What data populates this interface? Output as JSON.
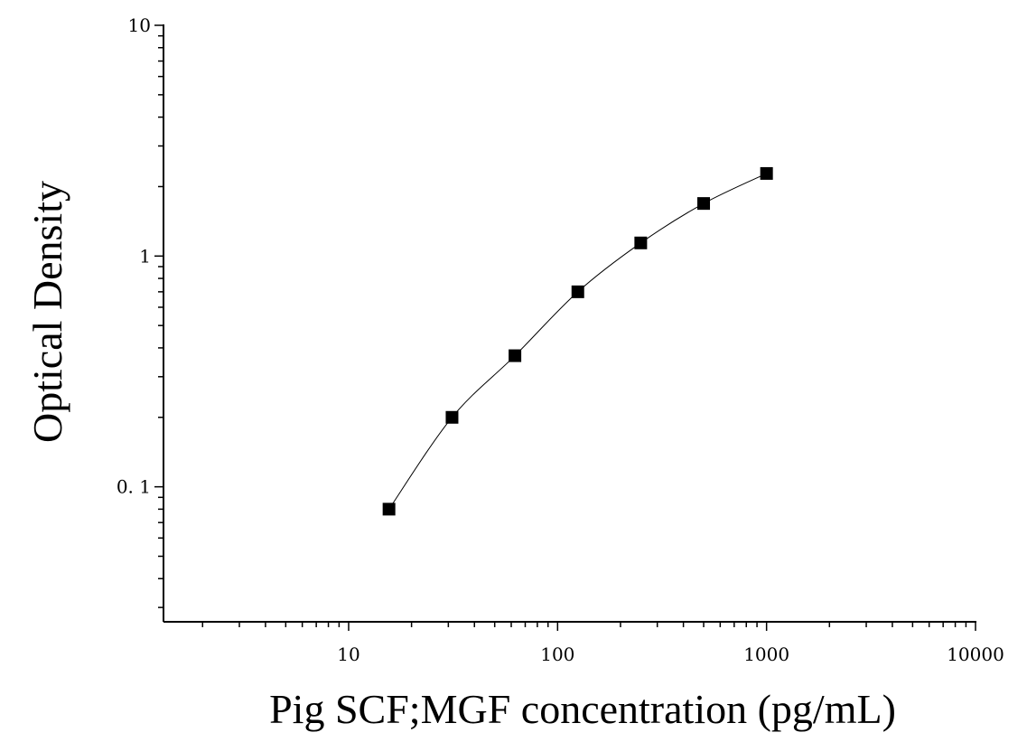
{
  "chart_data": {
    "type": "scatter",
    "title": "",
    "xlabel": "Pig SCF;MGF concentration (pg/mL)",
    "ylabel": "Optical Density",
    "x_scale": "log",
    "y_scale": "log",
    "xlim": [
      1.3,
      10000
    ],
    "ylim": [
      0.026,
      10
    ],
    "x_ticks": [
      10,
      100,
      1000,
      10000
    ],
    "x_tick_labels": [
      "10",
      "100",
      "1000",
      "10000"
    ],
    "y_ticks": [
      0.1,
      1,
      10
    ],
    "y_tick_labels": [
      "0. 1",
      "1",
      "10"
    ],
    "grid": false,
    "legend": "none",
    "marker": "square",
    "marker_color": "#000000",
    "line_color": "#000000",
    "series": [
      {
        "x": [
          15.6,
          31.25,
          62.5,
          125,
          250,
          500,
          1000
        ],
        "y": [
          0.08,
          0.2,
          0.37,
          0.7,
          1.14,
          1.69,
          2.28
        ],
        "fit_line": true
      }
    ]
  }
}
